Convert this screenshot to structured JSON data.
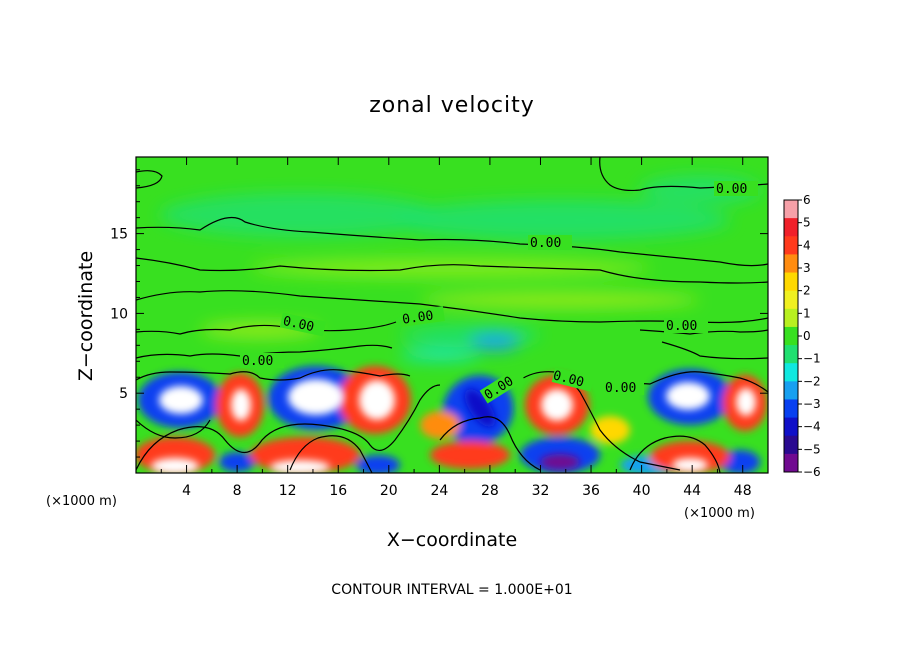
{
  "chart_data": {
    "type": "heatmap",
    "title": "zonal velocity",
    "xlabel": "X−coordinate",
    "ylabel": "Z−coordinate",
    "x_unit": "(×1000 m)",
    "z_unit": "(×1000 m)",
    "xlim": [
      0,
      50
    ],
    "ylim": [
      0,
      19.8
    ],
    "x_ticks": [
      "4",
      "8",
      "12",
      "16",
      "20",
      "24",
      "28",
      "32",
      "36",
      "40",
      "44",
      "48"
    ],
    "y_ticks": [
      "5",
      "10",
      "15"
    ],
    "colorbar": {
      "range": [
        -6,
        6
      ],
      "tick_labels": [
        "6",
        "5",
        "4",
        "3",
        "2",
        "1",
        "0",
        "−1",
        "−2",
        "−3",
        "−4",
        "−5",
        "−6"
      ],
      "colors": [
        "#f6a0a8",
        "#f0202a",
        "#ff3a1c",
        "#ff8c10",
        "#ffd800",
        "#f0f020",
        "#b8f020",
        "#38e020",
        "#20e070",
        "#10e8e0",
        "#18a0f0",
        "#0840f0",
        "#1010c8",
        "#2a0a90",
        "#700a90"
      ]
    },
    "contour_labels": [
      "0.00",
      "0.00",
      "0.00",
      "0.00",
      "0.00",
      "0.00",
      "0.00",
      "0.00"
    ],
    "vortices_lower_layer": [
      {
        "x": 4.5,
        "z": 4.7,
        "u": -6
      },
      {
        "x": 8.2,
        "z": 4.5,
        "u": 6
      },
      {
        "x": 14.5,
        "z": 4.9,
        "u": -6
      },
      {
        "x": 19.2,
        "z": 4.5,
        "u": 6
      },
      {
        "x": 27.5,
        "z": 3.8,
        "u": -4.5
      },
      {
        "x": 33.2,
        "z": 4.5,
        "u": 6
      },
      {
        "x": 44.0,
        "z": 4.7,
        "u": -6
      },
      {
        "x": 48.2,
        "z": 4.5,
        "u": 6
      }
    ],
    "footer": "CONTOUR INTERVAL = 1.000E+01"
  }
}
